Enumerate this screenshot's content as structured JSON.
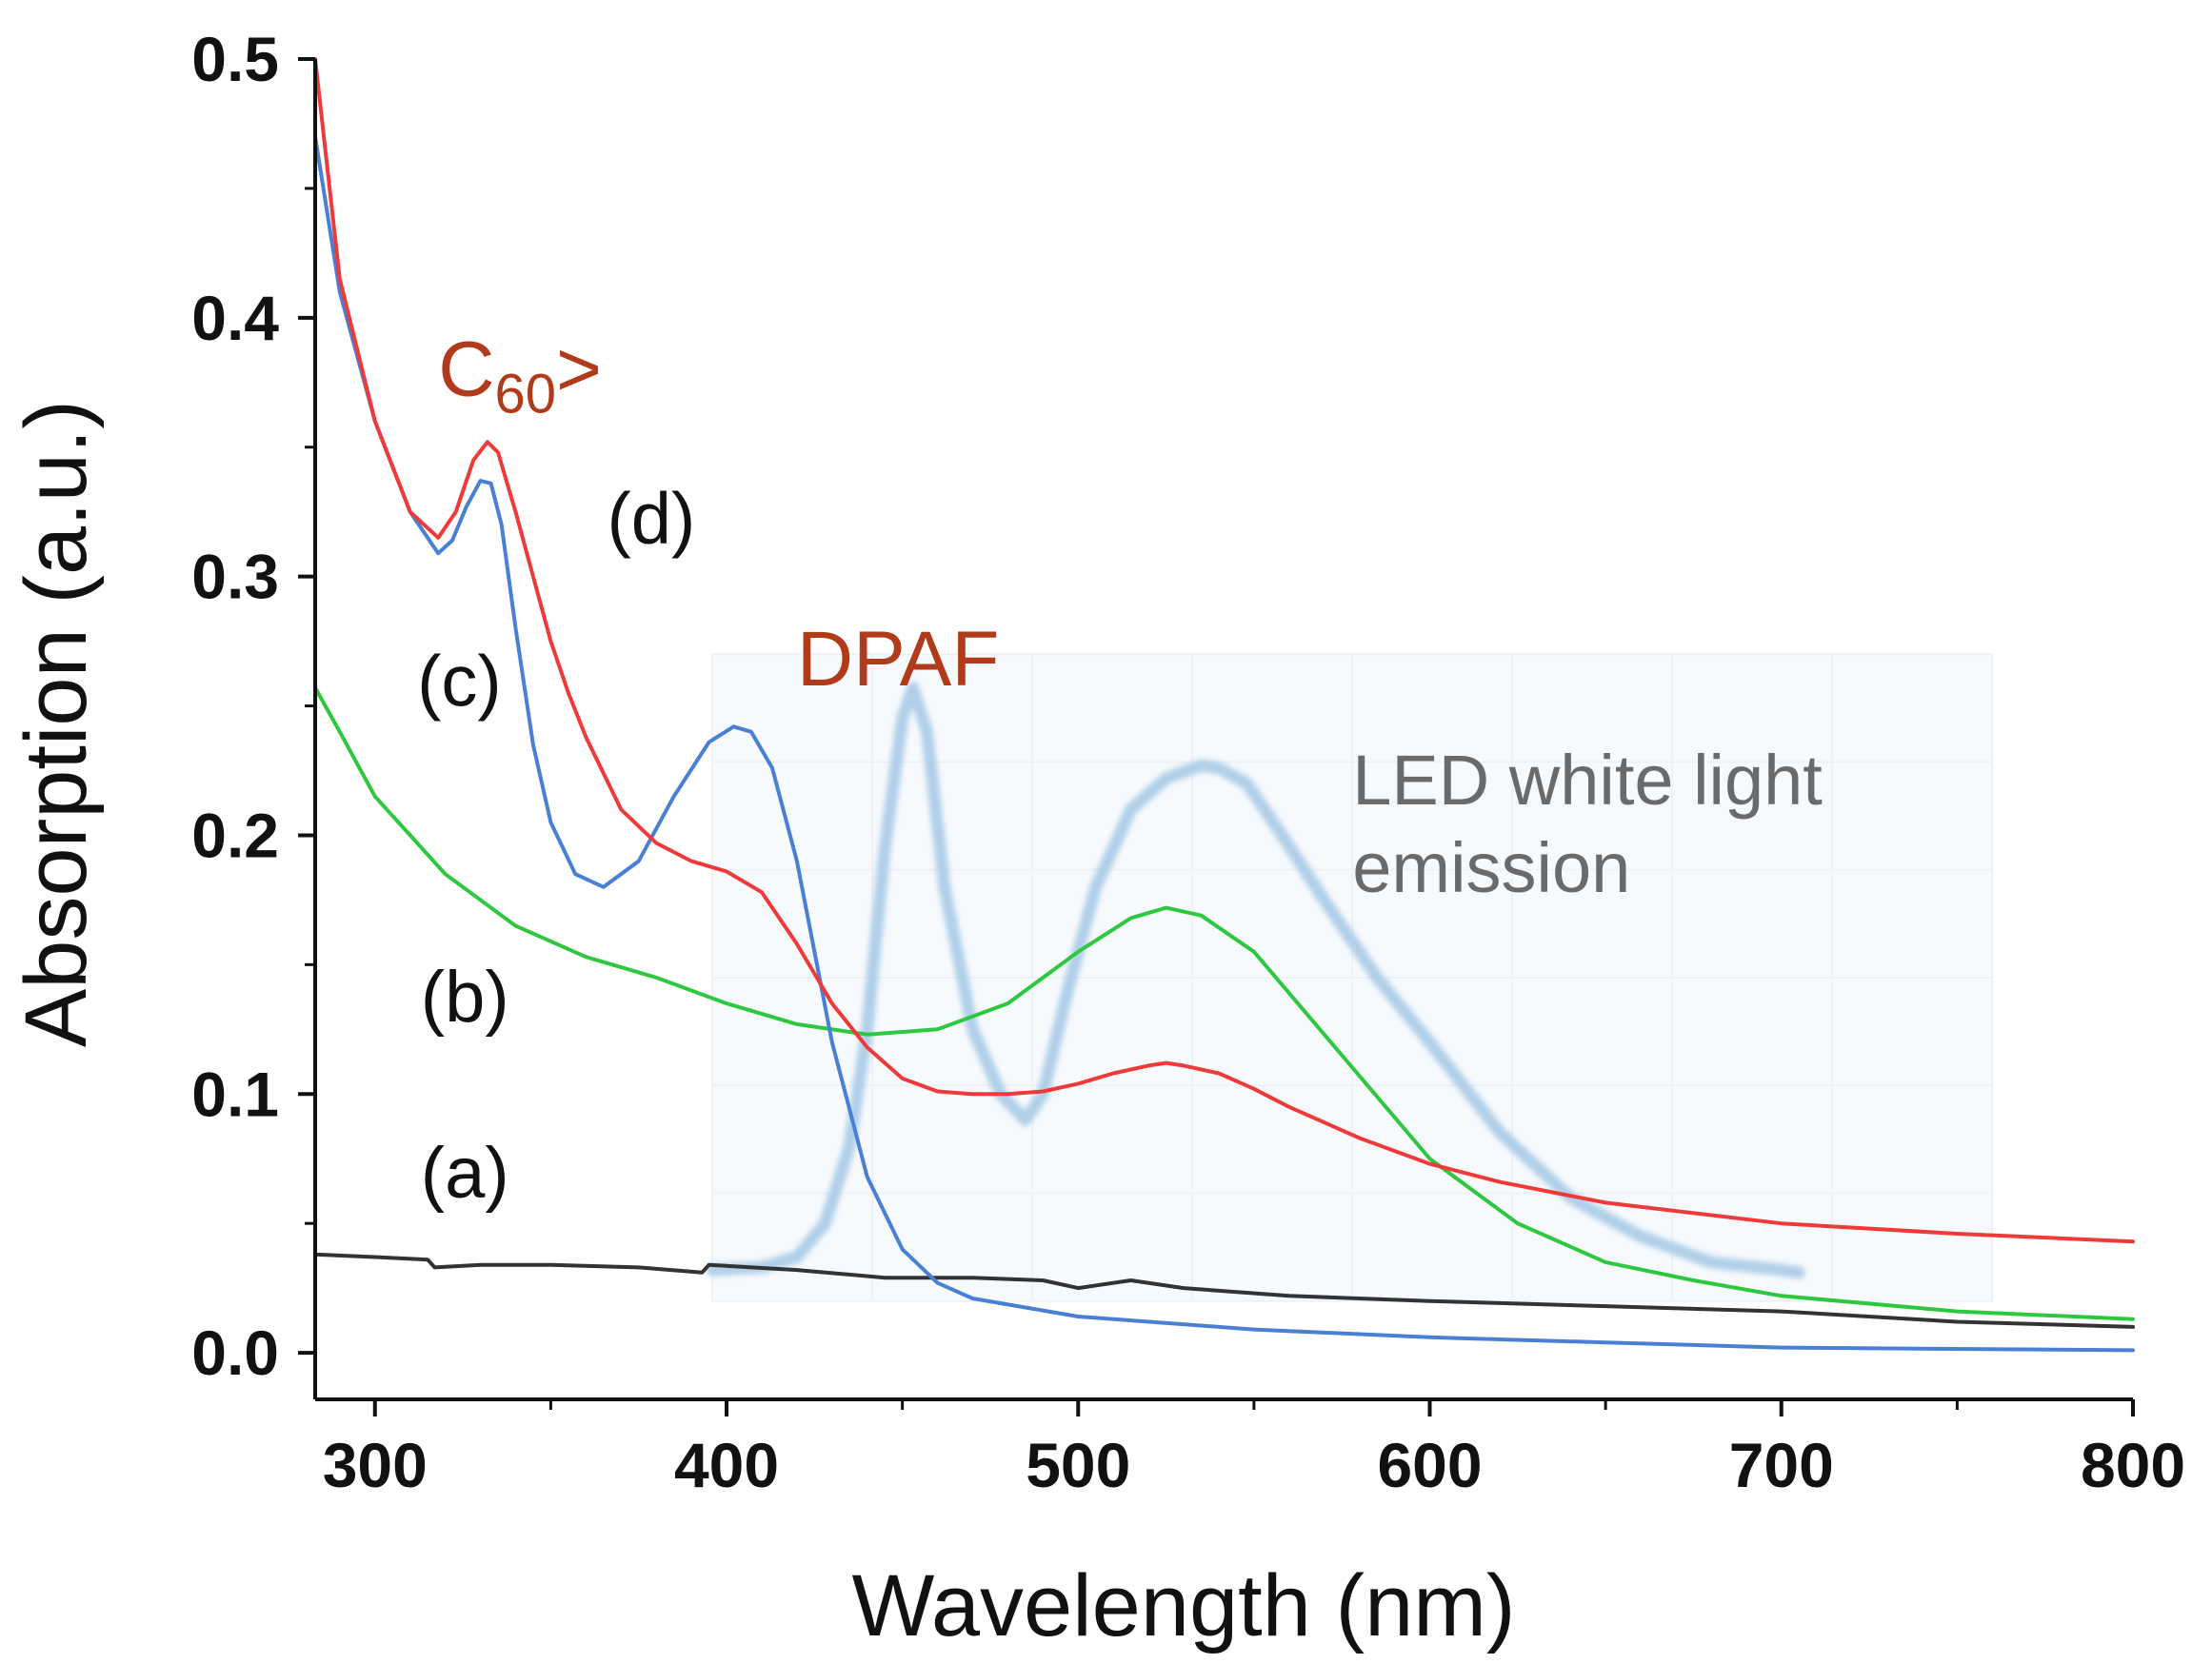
{
  "chart_data": {
    "type": "line",
    "xlabel": "Wavelength (nm)",
    "ylabel": "Absorption (a.u.)",
    "xlim": [
      283,
      800
    ],
    "ylim": [
      -0.018,
      0.5
    ],
    "xticks": [
      300,
      400,
      500,
      600,
      700,
      800
    ],
    "xtick_labels": [
      "300",
      "400",
      "500",
      "600",
      "700",
      "800"
    ],
    "yticks": [
      0.0,
      0.1,
      0.2,
      0.3,
      0.4,
      0.5
    ],
    "ytick_labels": [
      "0.0",
      "0.1",
      "0.2",
      "0.3",
      "0.4",
      "0.5"
    ],
    "grid": false,
    "series": [
      {
        "name": "LED white light emission",
        "color": "#a9cbe6",
        "x": [
          396,
          410,
          420,
          428,
          435,
          440,
          445,
          450,
          453,
          457,
          462,
          470,
          478,
          485,
          490,
          497,
          505,
          515,
          525,
          535,
          540,
          548,
          558,
          570,
          585,
          600,
          620,
          640,
          660,
          680,
          700,
          705
        ],
        "y": [
          0.032,
          0.033,
          0.037,
          0.05,
          0.08,
          0.125,
          0.195,
          0.245,
          0.257,
          0.24,
          0.18,
          0.125,
          0.1,
          0.09,
          0.1,
          0.14,
          0.18,
          0.21,
          0.222,
          0.227,
          0.226,
          0.22,
          0.2,
          0.175,
          0.145,
          0.12,
          0.085,
          0.06,
          0.045,
          0.035,
          0.032,
          0.031
        ]
      },
      {
        "name": "(a)",
        "color": "#333333",
        "x": [
          283,
          300,
          315,
          317,
          330,
          350,
          375,
          393,
          395,
          420,
          445,
          470,
          490,
          500,
          515,
          530,
          560,
          600,
          650,
          700,
          750,
          800
        ],
        "y": [
          0.038,
          0.037,
          0.036,
          0.033,
          0.034,
          0.034,
          0.033,
          0.031,
          0.034,
          0.032,
          0.029,
          0.029,
          0.028,
          0.025,
          0.028,
          0.025,
          0.022,
          0.02,
          0.018,
          0.016,
          0.012,
          0.01
        ]
      },
      {
        "name": "(b)",
        "color": "#2ec840",
        "x": [
          283,
          290,
          300,
          310,
          320,
          340,
          360,
          380,
          400,
          420,
          440,
          460,
          480,
          500,
          515,
          525,
          535,
          550,
          575,
          600,
          625,
          650,
          675,
          700,
          750,
          800
        ],
        "y": [
          0.257,
          0.24,
          0.215,
          0.2,
          0.185,
          0.165,
          0.153,
          0.145,
          0.135,
          0.127,
          0.123,
          0.125,
          0.135,
          0.155,
          0.168,
          0.172,
          0.169,
          0.155,
          0.115,
          0.075,
          0.05,
          0.035,
          0.028,
          0.022,
          0.016,
          0.013
        ]
      },
      {
        "name": "(c)",
        "color": "#4a7fd6",
        "x": [
          283,
          290,
          300,
          310,
          318,
          322,
          326,
          330,
          333,
          336,
          340,
          345,
          350,
          357,
          365,
          375,
          385,
          395,
          402,
          407,
          413,
          420,
          430,
          440,
          450,
          460,
          470,
          500,
          550,
          600,
          650,
          700,
          800
        ],
        "y": [
          0.47,
          0.41,
          0.36,
          0.325,
          0.309,
          0.314,
          0.327,
          0.337,
          0.336,
          0.32,
          0.28,
          0.235,
          0.205,
          0.185,
          0.18,
          0.19,
          0.215,
          0.236,
          0.242,
          0.24,
          0.226,
          0.19,
          0.12,
          0.068,
          0.04,
          0.027,
          0.021,
          0.014,
          0.009,
          0.006,
          0.004,
          0.002,
          0.001
        ]
      },
      {
        "name": "(d)",
        "color": "#f03a3a",
        "x": [
          283,
          290,
          300,
          310,
          318,
          323,
          328,
          332,
          335,
          340,
          345,
          350,
          355,
          360,
          370,
          380,
          390,
          400,
          410,
          420,
          430,
          440,
          450,
          460,
          470,
          480,
          490,
          500,
          510,
          520,
          525,
          530,
          540,
          550,
          560,
          580,
          600,
          620,
          650,
          700,
          750,
          800
        ],
        "y": [
          0.5,
          0.415,
          0.36,
          0.325,
          0.315,
          0.325,
          0.345,
          0.352,
          0.348,
          0.325,
          0.3,
          0.275,
          0.255,
          0.238,
          0.21,
          0.197,
          0.19,
          0.186,
          0.178,
          0.158,
          0.135,
          0.118,
          0.106,
          0.101,
          0.1,
          0.1,
          0.101,
          0.104,
          0.108,
          0.111,
          0.112,
          0.111,
          0.108,
          0.102,
          0.095,
          0.083,
          0.073,
          0.066,
          0.058,
          0.05,
          0.046,
          0.043
        ]
      }
    ],
    "annotations": [
      {
        "text": "(a)",
        "x": 313,
        "y": 0.06,
        "color": "#111111"
      },
      {
        "text": "(b)",
        "x": 313,
        "y": 0.128,
        "color": "#111111"
      },
      {
        "text": "(c)",
        "x": 312,
        "y": 0.25,
        "color": "#111111"
      },
      {
        "text": "(d)",
        "x": 366,
        "y": 0.313,
        "color": "#111111"
      },
      {
        "text": "DPAF",
        "x": 420,
        "y": 0.258,
        "color": "#b03a1a"
      },
      {
        "text_main": "C",
        "text_sub": "60",
        "text_tail": ">",
        "x": 318,
        "y": 0.37,
        "color": "#b03a1a"
      },
      {
        "line1": "LED white light",
        "line2": "emission",
        "x": 578,
        "y": 0.212,
        "color": "#6a6a6a"
      }
    ]
  }
}
